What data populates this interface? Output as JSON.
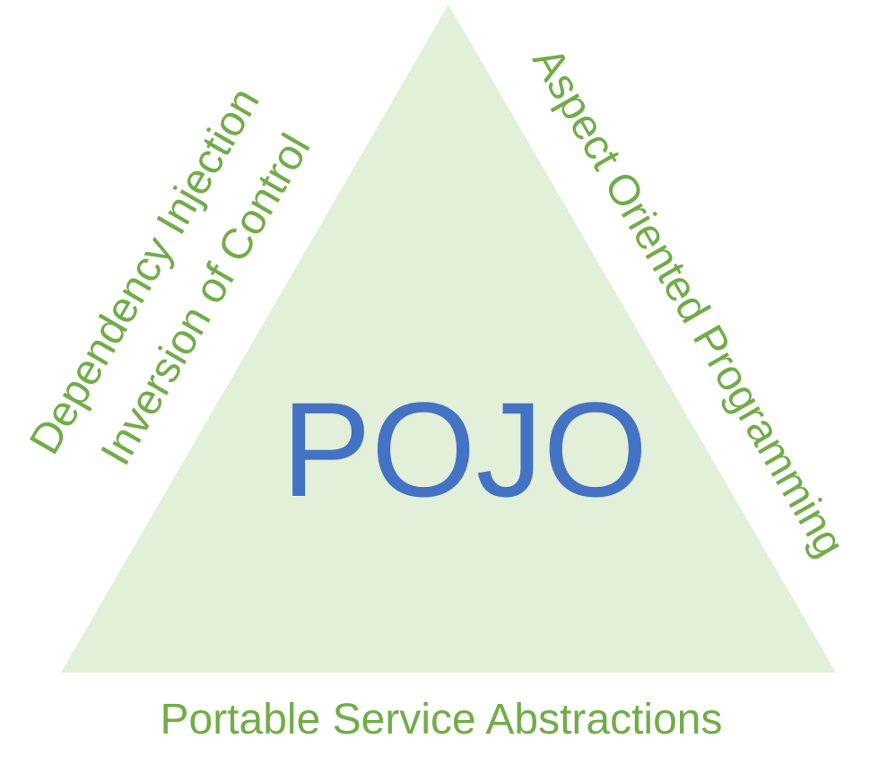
{
  "diagram": {
    "center_label": "POJO",
    "left_side": {
      "line1": "Dependency Injection",
      "line2": "Inversion of Control"
    },
    "right_side": "Aspect Oriented Programming",
    "bottom_side": "Portable Service Abstractions"
  },
  "colors": {
    "triangle_fill": "#e2efd9",
    "center_text": "#4472c4",
    "side_text": "#70ad47",
    "background": "#ffffff"
  }
}
